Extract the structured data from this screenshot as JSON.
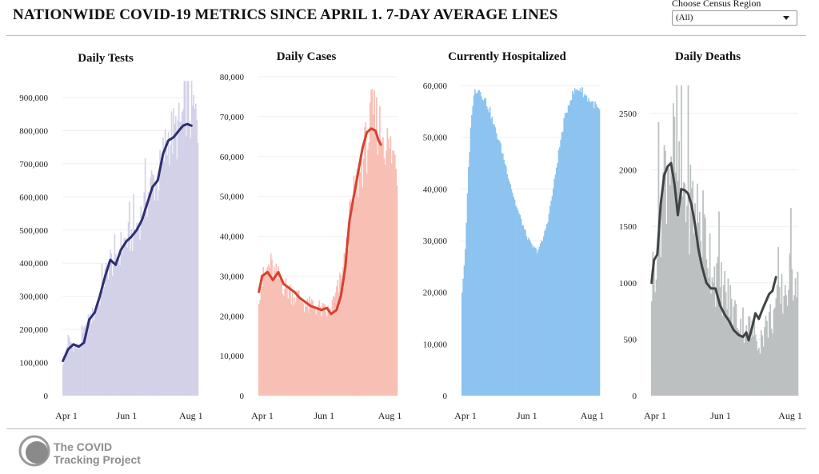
{
  "header": {
    "title": "NATIONWIDE COVID-19 METRICS SINCE APRIL 1. 7-DAY AVERAGE LINES",
    "region_label": "Choose Census Region",
    "region_value": "(All)"
  },
  "footer": {
    "logo_line1": "The COVID",
    "logo_line2": "Tracking Project"
  },
  "colors": {
    "tests_bar": "#d2d1e8",
    "tests_line": "#2e2f72",
    "cases_bar": "#f8bfb5",
    "cases_line": "#d8402f",
    "hosp_bar": "#8cc3ef",
    "deaths_bar": "#bcc0c0",
    "deaths_line": "#404446"
  },
  "chart_data": [
    {
      "type": "bar",
      "title": "Daily Tests",
      "ylim": [
        0,
        950000
      ],
      "yticks": [
        0,
        100000,
        200000,
        300000,
        400000,
        500000,
        600000,
        700000,
        800000,
        900000
      ],
      "ytick_labels": [
        "0",
        "100,000",
        "200,000",
        "300,000",
        "400,000",
        "500,000",
        "600,000",
        "700,000",
        "800,000",
        "900,000"
      ],
      "xtick_labels": [
        "Apr 1",
        "Jun 1",
        "Aug 1"
      ],
      "xtick_days": [
        0,
        61,
        122
      ],
      "days": 129,
      "daily_anchors": [
        [
          0,
          100000
        ],
        [
          5,
          170000
        ],
        [
          10,
          150000
        ],
        [
          15,
          145000
        ],
        [
          20,
          190000
        ],
        [
          25,
          230000
        ],
        [
          30,
          250000
        ],
        [
          35,
          300000
        ],
        [
          40,
          360000
        ],
        [
          45,
          410000
        ],
        [
          50,
          390000
        ],
        [
          55,
          450000
        ],
        [
          60,
          470000
        ],
        [
          65,
          480000
        ],
        [
          70,
          510000
        ],
        [
          75,
          550000
        ],
        [
          80,
          600000
        ],
        [
          85,
          650000
        ],
        [
          90,
          640000
        ],
        [
          95,
          720000
        ],
        [
          100,
          780000
        ],
        [
          105,
          790000
        ],
        [
          110,
          800000
        ],
        [
          114,
          840000
        ],
        [
          118,
          900000
        ],
        [
          121,
          850000
        ],
        [
          124,
          860000
        ],
        [
          128,
          800000
        ]
      ],
      "avg_anchors": [
        [
          0,
          105000
        ],
        [
          5,
          140000
        ],
        [
          10,
          155000
        ],
        [
          15,
          148000
        ],
        [
          20,
          160000
        ],
        [
          25,
          230000
        ],
        [
          30,
          250000
        ],
        [
          35,
          300000
        ],
        [
          40,
          360000
        ],
        [
          45,
          410000
        ],
        [
          50,
          395000
        ],
        [
          55,
          440000
        ],
        [
          60,
          465000
        ],
        [
          65,
          480000
        ],
        [
          70,
          500000
        ],
        [
          75,
          530000
        ],
        [
          80,
          580000
        ],
        [
          85,
          630000
        ],
        [
          90,
          650000
        ],
        [
          95,
          730000
        ],
        [
          100,
          770000
        ],
        [
          105,
          780000
        ],
        [
          110,
          800000
        ],
        [
          114,
          815000
        ],
        [
          118,
          820000
        ],
        [
          122,
          815000
        ]
      ],
      "series": [
        {
          "name": "",
          "kind": "daily-bars"
        },
        {
          "name": "",
          "kind": "7-day-average"
        }
      ]
    },
    {
      "type": "bar",
      "title": "Daily Cases",
      "ylim": [
        0,
        82000
      ],
      "yticks": [
        0,
        10000,
        20000,
        30000,
        40000,
        50000,
        60000,
        70000,
        80000
      ],
      "ytick_labels": [
        "0",
        "10,000",
        "20,000",
        "30,000",
        "40,000",
        "50,000",
        "60,000",
        "70,000",
        "80,000"
      ],
      "xtick_labels": [
        "Apr 1",
        "Jun 1",
        "Aug 1"
      ],
      "xtick_days": [
        0,
        61,
        122
      ],
      "days": 129,
      "daily_anchors": [
        [
          0,
          26000
        ],
        [
          5,
          30000
        ],
        [
          10,
          33000
        ],
        [
          15,
          30000
        ],
        [
          20,
          29000
        ],
        [
          25,
          27000
        ],
        [
          30,
          26000
        ],
        [
          35,
          25000
        ],
        [
          40,
          24000
        ],
        [
          45,
          22000
        ],
        [
          50,
          23000
        ],
        [
          55,
          22000
        ],
        [
          60,
          21000
        ],
        [
          65,
          21000
        ],
        [
          70,
          24000
        ],
        [
          75,
          28000
        ],
        [
          80,
          34000
        ],
        [
          85,
          46000
        ],
        [
          90,
          52000
        ],
        [
          95,
          58000
        ],
        [
          100,
          63000
        ],
        [
          105,
          70000
        ],
        [
          110,
          68000
        ],
        [
          115,
          66000
        ],
        [
          120,
          62000
        ],
        [
          125,
          60000
        ],
        [
          128,
          58000
        ]
      ],
      "avg_anchors": [
        [
          0,
          26000
        ],
        [
          3,
          30000
        ],
        [
          8,
          31000
        ],
        [
          13,
          29000
        ],
        [
          18,
          31000
        ],
        [
          23,
          28000
        ],
        [
          28,
          27000
        ],
        [
          33,
          26000
        ],
        [
          38,
          24500
        ],
        [
          43,
          23500
        ],
        [
          48,
          22500
        ],
        [
          53,
          22000
        ],
        [
          58,
          21500
        ],
        [
          63,
          22000
        ],
        [
          67,
          20500
        ],
        [
          72,
          21500
        ],
        [
          76,
          25000
        ],
        [
          80,
          32000
        ],
        [
          84,
          44000
        ],
        [
          88,
          50000
        ],
        [
          92,
          56000
        ],
        [
          96,
          62000
        ],
        [
          100,
          66000
        ],
        [
          104,
          67000
        ],
        [
          108,
          66500
        ],
        [
          111,
          64000
        ],
        [
          113,
          63000
        ]
      ],
      "series": [
        {
          "name": "",
          "kind": "daily-bars"
        },
        {
          "name": "",
          "kind": "7-day-average"
        }
      ]
    },
    {
      "type": "bar",
      "title": "Currently Hospitalized",
      "ylim": [
        0,
        61500
      ],
      "yticks": [
        0,
        10000,
        20000,
        30000,
        40000,
        50000,
        60000
      ],
      "ytick_labels": [
        "0",
        "10,000",
        "20,000",
        "30,000",
        "40,000",
        "50,000",
        "60,000"
      ],
      "xtick_labels": [
        "Apr 1",
        "Jun 1",
        "Aug 1"
      ],
      "xtick_days": [
        0,
        61,
        122
      ],
      "days": 129,
      "daily_anchors": [
        [
          0,
          20000
        ],
        [
          3,
          28000
        ],
        [
          6,
          44000
        ],
        [
          9,
          55000
        ],
        [
          12,
          59000
        ],
        [
          15,
          59500
        ],
        [
          18,
          58500
        ],
        [
          22,
          57000
        ],
        [
          26,
          55000
        ],
        [
          30,
          52000
        ],
        [
          35,
          49000
        ],
        [
          40,
          45000
        ],
        [
          45,
          41000
        ],
        [
          50,
          37000
        ],
        [
          55,
          34000
        ],
        [
          60,
          31000
        ],
        [
          65,
          29000
        ],
        [
          70,
          28000
        ],
        [
          75,
          30000
        ],
        [
          80,
          34000
        ],
        [
          85,
          40000
        ],
        [
          90,
          47000
        ],
        [
          95,
          53000
        ],
        [
          100,
          57000
        ],
        [
          105,
          59000
        ],
        [
          110,
          59500
        ],
        [
          115,
          58000
        ],
        [
          120,
          57000
        ],
        [
          125,
          56000
        ],
        [
          128,
          55000
        ]
      ],
      "avg_anchors": [],
      "series": [
        {
          "name": "",
          "kind": "daily-bars"
        }
      ]
    },
    {
      "type": "bar",
      "title": "Daily Deaths",
      "ylim": [
        0,
        2750
      ],
      "yticks": [
        0,
        500,
        1000,
        1500,
        2000,
        2500
      ],
      "ytick_labels": [
        "0",
        "500",
        "1000",
        "1500",
        "2000",
        "2500"
      ],
      "xtick_labels": [
        "Apr 1",
        "Jun 1",
        "Aug 1"
      ],
      "xtick_days": [
        0,
        61,
        122
      ],
      "days": 129,
      "daily_anchors": [
        [
          0,
          1000
        ],
        [
          5,
          1400
        ],
        [
          10,
          1900
        ],
        [
          15,
          2200
        ],
        [
          20,
          2100
        ],
        [
          25,
          1900
        ],
        [
          30,
          1800
        ],
        [
          35,
          1700
        ],
        [
          40,
          1600
        ],
        [
          45,
          1500
        ],
        [
          50,
          1300
        ],
        [
          55,
          1100
        ],
        [
          60,
          1000
        ],
        [
          65,
          900
        ],
        [
          70,
          800
        ],
        [
          75,
          700
        ],
        [
          80,
          650
        ],
        [
          85,
          600
        ],
        [
          90,
          550
        ],
        [
          95,
          500
        ],
        [
          100,
          600
        ],
        [
          105,
          700
        ],
        [
          110,
          800
        ],
        [
          115,
          900
        ],
        [
          120,
          1000
        ],
        [
          125,
          1100
        ],
        [
          128,
          1200
        ]
      ],
      "avg_anchors": [
        [
          0,
          1000
        ],
        [
          2,
          1200
        ],
        [
          5,
          1250
        ],
        [
          8,
          1700
        ],
        [
          11,
          1950
        ],
        [
          14,
          2030
        ],
        [
          17,
          2060
        ],
        [
          20,
          1880
        ],
        [
          23,
          1600
        ],
        [
          26,
          1830
        ],
        [
          29,
          1820
        ],
        [
          32,
          1790
        ],
        [
          35,
          1690
        ],
        [
          38,
          1520
        ],
        [
          41,
          1300
        ],
        [
          44,
          1150
        ],
        [
          48,
          1000
        ],
        [
          52,
          950
        ],
        [
          56,
          950
        ],
        [
          60,
          800
        ],
        [
          64,
          720
        ],
        [
          68,
          660
        ],
        [
          72,
          580
        ],
        [
          76,
          540
        ],
        [
          80,
          520
        ],
        [
          83,
          560
        ],
        [
          85,
          490
        ],
        [
          88,
          600
        ],
        [
          91,
          730
        ],
        [
          94,
          680
        ],
        [
          97,
          760
        ],
        [
          100,
          830
        ],
        [
          103,
          900
        ],
        [
          106,
          930
        ],
        [
          109,
          1050
        ]
      ],
      "series": [
        {
          "name": "",
          "kind": "daily-bars"
        },
        {
          "name": "",
          "kind": "7-day-average"
        }
      ]
    }
  ]
}
